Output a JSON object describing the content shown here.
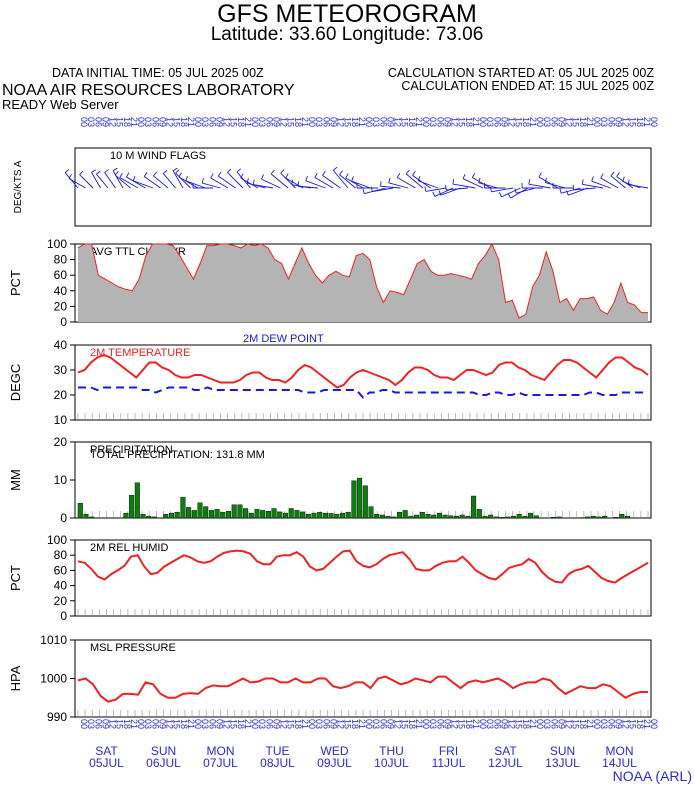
{
  "header": {
    "title": "GFS METEOROGRAM",
    "subtitle": "Latitude: 33.60 Longitude:  73.06",
    "initial_time": "DATA INITIAL TIME: 05 JUL 2025 00Z",
    "calc_started": "CALCULATION STARTED AT: 05 JUL 2025 00Z",
    "calc_ended": "CALCULATION ENDED AT: 15 JUL 2025 00Z",
    "lab": "NOAA AIR RESOURCES LABORATORY",
    "server": "READY Web Server",
    "footer": "NOAA (ARL)"
  },
  "colors": {
    "temp": "#ee2222",
    "dew": "#1a1ad8",
    "cloud": "#b4b4b4",
    "precip": "#0d7d0d",
    "blue_text": "#2a2ad8"
  },
  "chart_data": [
    {
      "type": "barbs",
      "title": "10 M  WIND FLAGS",
      "ylabel": "DEG/KTS  A",
      "wind_dir_deg": [
        320,
        300,
        315,
        330,
        320,
        325,
        330,
        310,
        300,
        300,
        290,
        305,
        310,
        320,
        330,
        315,
        300,
        290,
        270,
        285,
        300,
        305,
        315,
        320,
        300,
        285,
        280,
        295,
        310,
        315,
        300,
        280,
        275,
        290,
        300,
        305,
        320,
        310,
        300,
        290,
        270,
        255,
        260,
        275,
        285,
        300,
        310,
        305,
        290,
        260,
        245,
        250,
        265,
        280,
        295,
        300,
        285,
        270,
        260,
        245,
        240,
        255,
        270,
        280,
        300,
        285,
        270,
        255,
        250,
        265,
        280,
        290,
        300,
        310,
        305,
        290,
        280
      ],
      "wind_speed_kt": [
        6,
        5,
        5,
        4,
        4,
        5,
        6,
        6,
        7,
        8,
        7,
        6,
        5,
        5,
        6,
        7,
        8,
        7,
        6,
        5,
        6,
        7,
        8,
        7,
        6,
        5,
        6,
        7,
        8,
        7,
        6,
        5,
        6,
        7,
        7,
        8,
        9,
        7,
        6,
        6,
        7,
        8,
        7,
        6,
        6,
        7,
        8,
        8,
        7,
        6,
        6,
        7,
        8,
        9,
        8,
        7,
        6,
        7,
        8,
        7,
        6,
        6,
        7,
        8,
        8,
        7,
        6,
        6,
        7,
        8,
        7,
        6,
        6,
        5,
        6,
        5,
        6
      ]
    },
    {
      "type": "area",
      "title": "AVG TTL CLD CVR",
      "ylabel": "PCT",
      "ylim": [
        0,
        100
      ],
      "yticks": [
        0,
        20,
        40,
        60,
        80,
        100
      ],
      "values": [
        95,
        100,
        100,
        60,
        55,
        50,
        45,
        42,
        40,
        55,
        85,
        100,
        100,
        100,
        98,
        85,
        70,
        55,
        75,
        98,
        98,
        100,
        100,
        98,
        95,
        100,
        98,
        100,
        95,
        80,
        75,
        55,
        75,
        95,
        75,
        60,
        50,
        60,
        65,
        60,
        58,
        85,
        88,
        80,
        45,
        25,
        40,
        38,
        35,
        55,
        75,
        80,
        65,
        60,
        60,
        62,
        60,
        58,
        55,
        75,
        85,
        100,
        80,
        25,
        28,
        5,
        10,
        45,
        60,
        90,
        65,
        25,
        30,
        15,
        30,
        30,
        32,
        15,
        10,
        25,
        50,
        25,
        22,
        12,
        12
      ]
    },
    {
      "type": "line",
      "title": "2M TEMPERATURE",
      "title2": "2M   DEW POINT",
      "ylabel": "DEGC",
      "ylim": [
        10,
        40
      ],
      "yticks": [
        10,
        20,
        30,
        40
      ],
      "series": [
        {
          "name": "2M TEMPERATURE",
          "values": [
            29,
            30,
            33,
            35,
            36,
            35,
            33,
            31,
            29,
            27,
            30,
            33,
            33,
            31,
            30,
            28,
            27,
            27,
            28,
            28,
            27,
            26,
            25,
            25,
            25,
            26,
            28,
            29,
            29,
            27,
            26,
            26,
            25,
            27,
            30,
            32,
            31,
            29,
            27,
            25,
            23,
            24,
            27,
            29,
            30,
            29,
            28,
            27,
            26,
            24,
            26,
            29,
            31,
            31,
            30,
            28,
            27,
            27,
            26,
            28,
            30,
            30,
            29,
            28,
            29,
            32,
            33,
            33,
            31,
            30,
            28,
            27,
            26,
            29,
            32,
            34,
            34,
            33,
            31,
            29,
            27,
            30,
            33,
            35,
            35,
            33,
            31,
            30,
            28
          ]
        },
        {
          "name": "2M   DEW POINT",
          "values": [
            23,
            23,
            23,
            22,
            23,
            23,
            23,
            23,
            23,
            23,
            22,
            22,
            21,
            22,
            23,
            23,
            23,
            23,
            22,
            22,
            23,
            22,
            22,
            22,
            22,
            22,
            22,
            22,
            22,
            22,
            22,
            22,
            22,
            22,
            22,
            21,
            21,
            21,
            22,
            22,
            22,
            22,
            22,
            22,
            19,
            21,
            21,
            22,
            22,
            21,
            21,
            21,
            21,
            21,
            21,
            21,
            21,
            21,
            21,
            21,
            21,
            21,
            20,
            20,
            21,
            21,
            20,
            20,
            21,
            20,
            20,
            20,
            20,
            20,
            20,
            20,
            20,
            20,
            20,
            21,
            21,
            20,
            20,
            20,
            21,
            21,
            21,
            21,
            21
          ]
        }
      ]
    },
    {
      "type": "bar",
      "title": "PRECIPITATION",
      "note": "TOTAL PRECIPITATION: 131.8 MM",
      "ylabel": "MM",
      "ylim": [
        0,
        20
      ],
      "yticks": [
        0,
        10,
        20
      ],
      "values": [
        3.9,
        1.0,
        0.3,
        0,
        0,
        0,
        0,
        0,
        1.3,
        6.0,
        9.3,
        1.0,
        0.5,
        0.3,
        0,
        1.0,
        1.3,
        1.5,
        5.5,
        2.8,
        2.0,
        4.0,
        3.0,
        2.0,
        2.3,
        1.5,
        1.8,
        3.5,
        3.5,
        2.5,
        1.3,
        2.3,
        2.0,
        1.8,
        2.5,
        1.6,
        1.3,
        2.5,
        2.0,
        1.6,
        1.0,
        1.3,
        1.5,
        1.3,
        1.2,
        1.0,
        1.3,
        1.5,
        9.8,
        10.5,
        8.5,
        3.0,
        1.0,
        0.8,
        0.5,
        0.3,
        1.5,
        2.0,
        0.5,
        0.8,
        1.5,
        1.0,
        0.8,
        1.3,
        0.8,
        0.6,
        0.5,
        0.8,
        0.5,
        5.8,
        2.3,
        0.5,
        0.8,
        0.3,
        0.2,
        0.3,
        0.5,
        1.0,
        0.5,
        1.3,
        0.6,
        0,
        0,
        0.2,
        0.3,
        0,
        0,
        0,
        0.1,
        0.3,
        0.5,
        0.3,
        0.5,
        0,
        0.2,
        1.0,
        0.5,
        0,
        0,
        0
      ]
    },
    {
      "type": "line",
      "title": "2M REL HUMID",
      "ylabel": "PCT",
      "ylim": [
        0,
        100
      ],
      "yticks": [
        0,
        20,
        40,
        60,
        80,
        100
      ],
      "values": [
        72,
        70,
        62,
        52,
        48,
        55,
        60,
        66,
        78,
        80,
        65,
        55,
        57,
        65,
        70,
        75,
        80,
        77,
        72,
        70,
        72,
        78,
        83,
        85,
        86,
        85,
        82,
        72,
        68,
        68,
        78,
        80,
        80,
        84,
        78,
        65,
        60,
        62,
        70,
        78,
        85,
        86,
        72,
        66,
        64,
        68,
        75,
        80,
        82,
        84,
        75,
        62,
        60,
        60,
        66,
        70,
        72,
        72,
        78,
        70,
        60,
        55,
        50,
        48,
        55,
        63,
        66,
        68,
        75,
        70,
        58,
        50,
        45,
        44,
        55,
        60,
        62,
        66,
        58,
        50,
        46,
        44,
        50,
        55,
        60,
        65,
        70
      ]
    },
    {
      "type": "line",
      "title": "MSL PRESSURE",
      "ylabel": "HPA",
      "ylim": [
        990,
        1010
      ],
      "yticks": [
        990,
        1000,
        1010
      ],
      "values": [
        999.5,
        1000,
        998.5,
        995.5,
        994,
        994.5,
        996,
        996,
        995.8,
        999,
        998.5,
        996,
        995,
        995,
        996,
        996.2,
        996,
        997.5,
        998.2,
        998,
        998,
        999,
        1000,
        999,
        999.2,
        1000,
        1000,
        999,
        999,
        1000,
        999,
        999,
        1000,
        1000,
        998,
        997.5,
        998,
        999,
        999,
        997.5,
        1000,
        1000.5,
        999.5,
        998.5,
        999,
        1000,
        999.5,
        999,
        1000.5,
        1000.5,
        999,
        997.5,
        999,
        999.5,
        999,
        999.5,
        1000,
        999,
        997.5,
        998.5,
        999,
        999,
        1000,
        999.5,
        997.5,
        996,
        997,
        998,
        997.5,
        997.5,
        998.5,
        998,
        996.5,
        995,
        996,
        996.5,
        996.5
      ]
    }
  ],
  "x_axis": {
    "hour_labels": [
      "00",
      "03",
      "06",
      "09",
      "12",
      "15",
      "18",
      "21",
      "00",
      "03",
      "06",
      "09",
      "12",
      "15",
      "18",
      "21",
      "00",
      "03",
      "06",
      "09",
      "12",
      "15",
      "18",
      "21",
      "00",
      "03",
      "06",
      "09",
      "12",
      "15",
      "18",
      "21",
      "00",
      "03",
      "06",
      "09",
      "12",
      "15",
      "18",
      "21",
      "00",
      "03",
      "06",
      "09",
      "12",
      "15",
      "18",
      "21",
      "00",
      "03",
      "06",
      "09",
      "12",
      "15",
      "18",
      "21",
      "00",
      "03",
      "06",
      "09",
      "12",
      "15",
      "18",
      "21",
      "00",
      "03",
      "06",
      "09",
      "12",
      "15",
      "18",
      "21",
      "00",
      "03",
      "06",
      "09",
      "12",
      "15",
      "18",
      "21",
      "00"
    ],
    "day_labels": [
      {
        "day": "SAT",
        "date": "05JUL"
      },
      {
        "day": "SUN",
        "date": "06JUL"
      },
      {
        "day": "MON",
        "date": "07JUL"
      },
      {
        "day": "TUE",
        "date": "08JUL"
      },
      {
        "day": "WED",
        "date": "09JUL"
      },
      {
        "day": "THU",
        "date": "10JUL"
      },
      {
        "day": "FRI",
        "date": "11JUL"
      },
      {
        "day": "SAT",
        "date": "12JUL"
      },
      {
        "day": "SUN",
        "date": "13JUL"
      },
      {
        "day": "MON",
        "date": "14JUL"
      }
    ]
  }
}
